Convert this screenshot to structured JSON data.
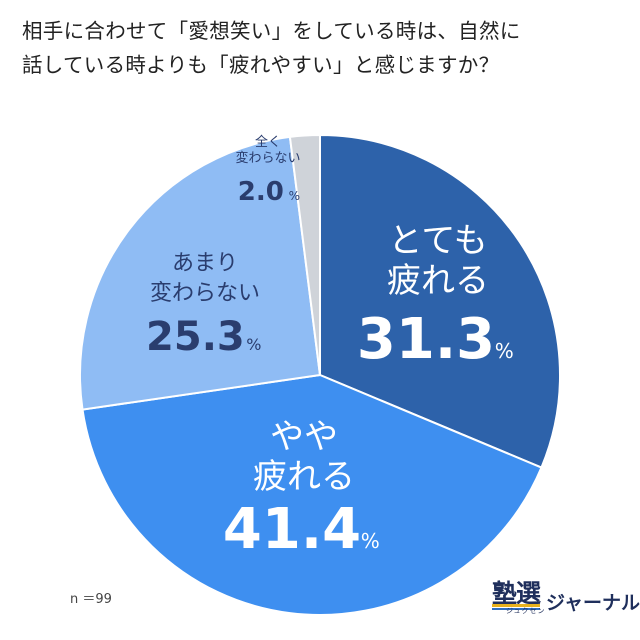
{
  "title_lines": [
    "相手に合わせて「愛想笑い」をしている時は、自然に",
    "話している時よりも「疲れやすい」と感じますか？"
  ],
  "sample_size": "n ＝99",
  "logo": {
    "main": "塾選",
    "sub": "ジュクセン",
    "journal": "ジャーナル"
  },
  "colors": {
    "slice_1": "#2d62aa",
    "slice_2": "#3e8ff0",
    "slice_3": "#8fbcf4",
    "slice_4": "#cfd3d9",
    "label_light": "#ffffff",
    "label_dark": "#2a3d6e"
  },
  "chart_data": {
    "type": "pie",
    "start_angle_deg": 0,
    "direction": "clockwise",
    "unit": "%",
    "slices": [
      {
        "label_lines": [
          "とても",
          "疲れる"
        ],
        "value": 31.3,
        "value_text": "31.3"
      },
      {
        "label_lines": [
          "やや",
          "疲れる"
        ],
        "value": 41.4,
        "value_text": "41.4"
      },
      {
        "label_lines": [
          "あまり",
          "変わらない"
        ],
        "value": 25.3,
        "value_text": "25.3"
      },
      {
        "label_lines": [
          "全く",
          "変わらない"
        ],
        "value": 2.0,
        "value_text": "2.0"
      }
    ]
  }
}
